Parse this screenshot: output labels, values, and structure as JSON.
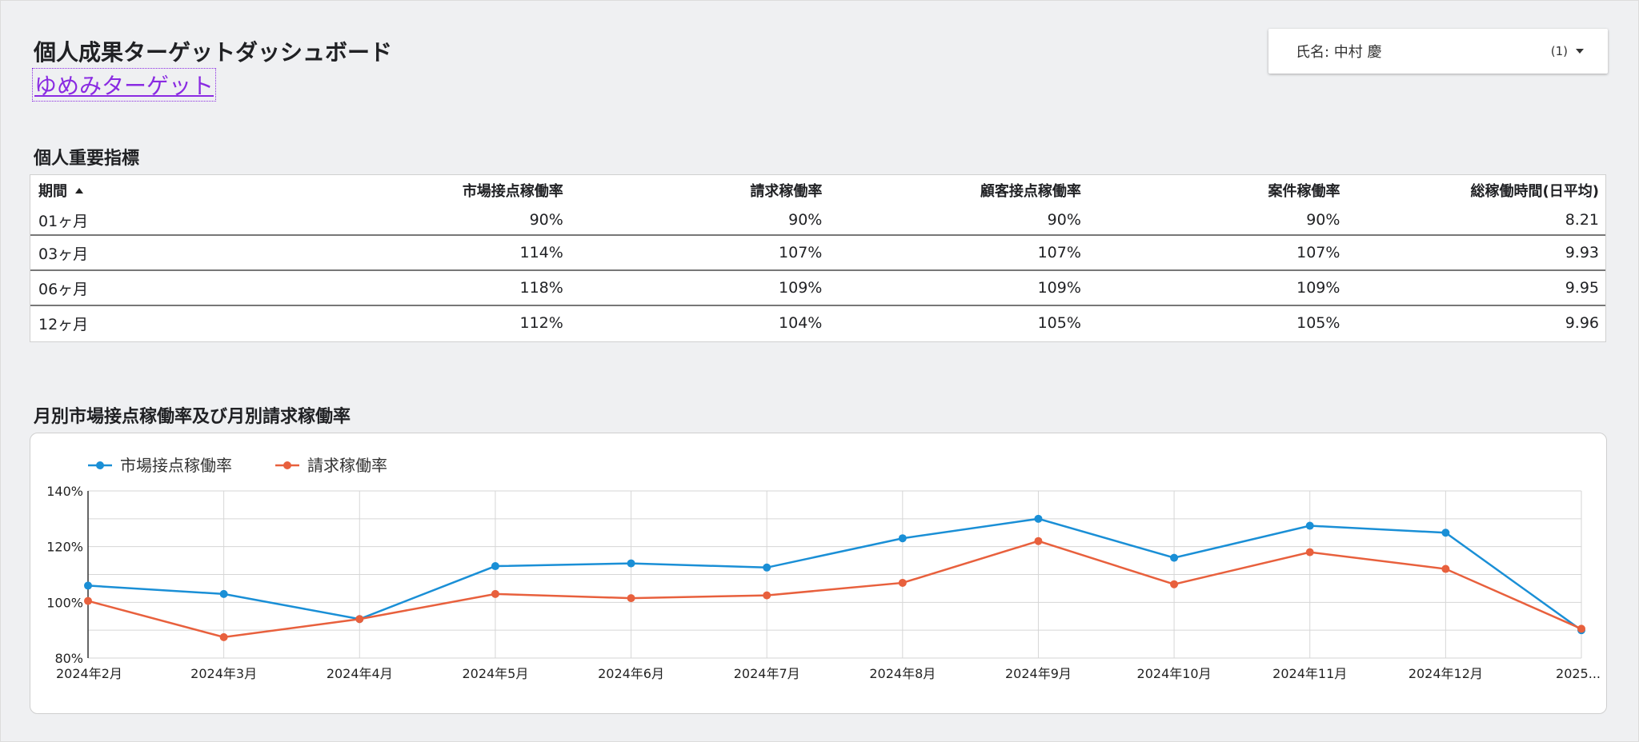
{
  "header": {
    "title": "個人成果ターゲットダッシュボード",
    "link": "ゆめみターゲット"
  },
  "filter": {
    "label": "氏名: 中村 慶",
    "count": "(1)"
  },
  "kpi": {
    "title": "個人重要指標",
    "columns": [
      "期間",
      "市場接点稼働率",
      "請求稼働率",
      "顧客接点稼働率",
      "案件稼働率",
      "総稼働時間(日平均)"
    ],
    "rows": [
      [
        "01ヶ月",
        "90%",
        "90%",
        "90%",
        "90%",
        "8.21"
      ],
      [
        "03ヶ月",
        "114%",
        "107%",
        "107%",
        "107%",
        "9.93"
      ],
      [
        "06ヶ月",
        "118%",
        "109%",
        "109%",
        "109%",
        "9.95"
      ],
      [
        "12ヶ月",
        "112%",
        "104%",
        "105%",
        "105%",
        "9.96"
      ]
    ]
  },
  "chart_section": {
    "title": "月別市場接点稼働率及び月別請求稼働率"
  },
  "chart_data": {
    "type": "line",
    "categories": [
      "2024年2月",
      "2024年3月",
      "2024年4月",
      "2024年5月",
      "2024年6月",
      "2024年7月",
      "2024年8月",
      "2024年9月",
      "2024年10月",
      "2024年11月",
      "2024年12月",
      "2025..."
    ],
    "series": [
      {
        "name": "市場接点稼働率",
        "color": "#1a8fd6",
        "values": [
          106,
          103,
          94,
          113,
          114,
          112.5,
          123,
          130,
          116,
          127.5,
          125,
          90
        ]
      },
      {
        "name": "請求稼働率",
        "color": "#e8603d",
        "values": [
          100.5,
          87.5,
          94,
          103,
          101.5,
          102.5,
          107,
          122,
          106.5,
          118,
          112,
          90.5
        ]
      }
    ],
    "ylim": [
      80,
      140
    ],
    "yticks": [
      "140%",
      "120%",
      "100%",
      "80%"
    ],
    "legend": "top-left",
    "grid": true
  },
  "colors": {
    "background": "#eff0f2",
    "link": "#8a2be2"
  },
  "icons": {
    "filter_caret": "caret-down-icon",
    "sort": "sort-ascending-icon"
  }
}
